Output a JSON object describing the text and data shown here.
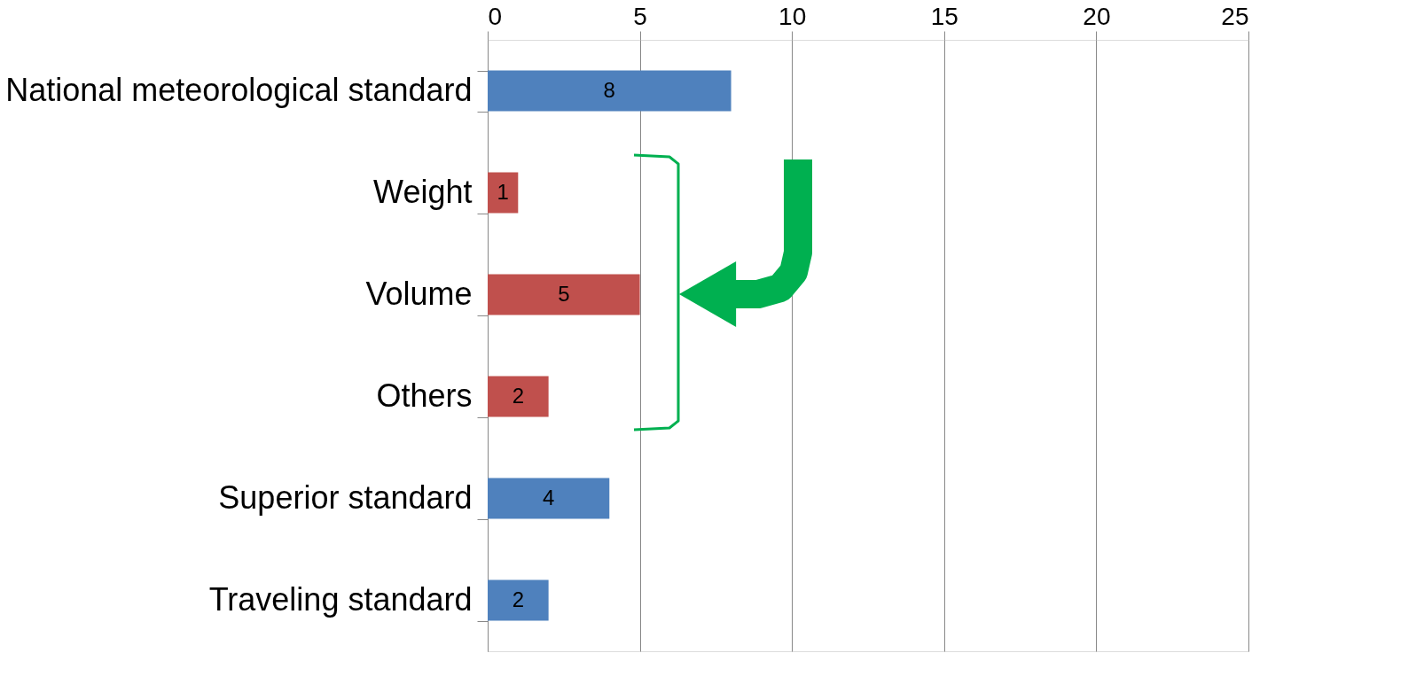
{
  "chart_data": {
    "type": "bar",
    "orientation": "horizontal",
    "categories": [
      "National meteorological standard",
      "Weight",
      "Volume",
      "Others",
      "Superior standard",
      "Traveling standard"
    ],
    "values": [
      8,
      1,
      5,
      2,
      4,
      2
    ],
    "colors": [
      "#4f81bd",
      "#c0504d",
      "#c0504d",
      "#c0504d",
      "#4f81bd",
      "#4f81bd"
    ],
    "xlim": [
      0,
      25
    ],
    "xticks": [
      0,
      5,
      10,
      15,
      20,
      25
    ],
    "grid": "x",
    "data_labels": true
  }
}
